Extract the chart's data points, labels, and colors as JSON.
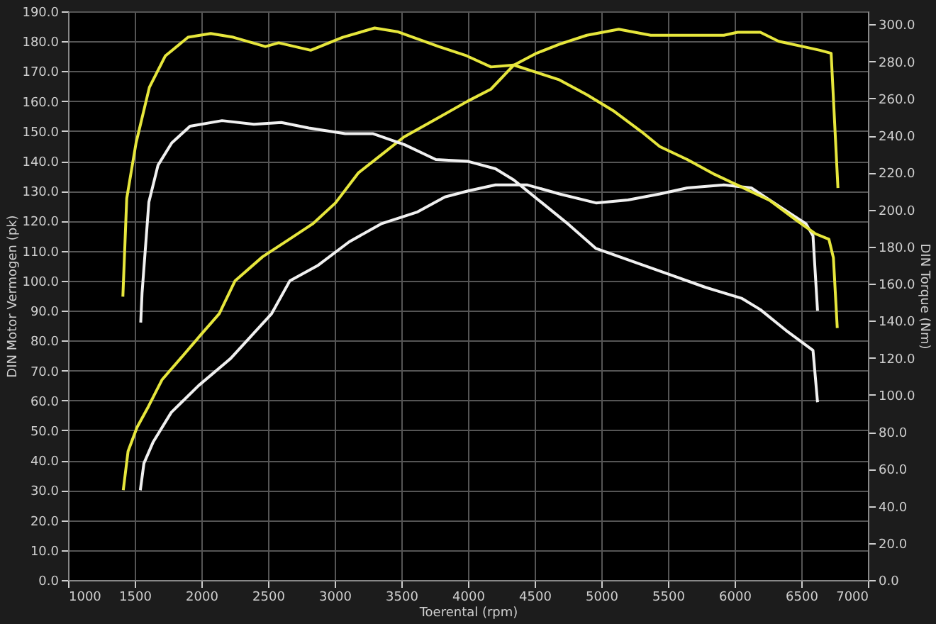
{
  "chart_data": {
    "type": "line",
    "xlabel": "Toerental (rpm)",
    "ylabel": "DIN Motor Vermogen (pk)",
    "y2label": "DIN Torque (Nm)",
    "xlim": [
      1000,
      7000
    ],
    "xticks": [
      1000,
      1500,
      2000,
      2500,
      3000,
      3500,
      4000,
      4500,
      5000,
      5500,
      6000,
      6500,
      7000
    ],
    "ylim": [
      0,
      190
    ],
    "yticks": [
      {
        "value": 0,
        "label": "0.0"
      },
      {
        "value": 10,
        "label": "10.0"
      },
      {
        "value": 20,
        "label": "20.0"
      },
      {
        "value": 30,
        "label": "30.0"
      },
      {
        "value": 40,
        "label": "40.0"
      },
      {
        "value": 50,
        "label": "50.0"
      },
      {
        "value": 60,
        "label": "60.0"
      },
      {
        "value": 70,
        "label": "70.0"
      },
      {
        "value": 80,
        "label": "80.0"
      },
      {
        "value": 90,
        "label": "90.0"
      },
      {
        "value": 100,
        "label": "100.0"
      },
      {
        "value": 110,
        "label": "110.0"
      },
      {
        "value": 120,
        "label": "120.0"
      },
      {
        "value": 130,
        "label": "130.0"
      },
      {
        "value": 140,
        "label": "140.0"
      },
      {
        "value": 150,
        "label": "150.0"
      },
      {
        "value": 160,
        "label": "160.0"
      },
      {
        "value": 170,
        "label": "170.0"
      },
      {
        "value": 180,
        "label": "180.0"
      },
      {
        "value": 190,
        "label": "190.0"
      }
    ],
    "y2lim": [
      0,
      307
    ],
    "y2ticks": [
      {
        "value": 0,
        "label": "0.0"
      },
      {
        "value": 20,
        "label": "20.0"
      },
      {
        "value": 40,
        "label": "40.0"
      },
      {
        "value": 60,
        "label": "60.0"
      },
      {
        "value": 80,
        "label": "80.0"
      },
      {
        "value": 100,
        "label": "100.0"
      },
      {
        "value": 120,
        "label": "120.0"
      },
      {
        "value": 140,
        "label": "140.0"
      },
      {
        "value": 160,
        "label": "160.0"
      },
      {
        "value": 180,
        "label": "180.0"
      },
      {
        "value": 200,
        "label": "200.0"
      },
      {
        "value": 220,
        "label": "220.0"
      },
      {
        "value": 240,
        "label": "240.0"
      },
      {
        "value": 260,
        "label": "260.0"
      },
      {
        "value": 280,
        "label": "280.0"
      },
      {
        "value": 300,
        "label": "300.0"
      }
    ],
    "grid": true,
    "marker": "none",
    "line_style": "solid",
    "series": [
      {
        "color": "#e6e63c",
        "x": [
          1414,
          1450,
          1517,
          1603,
          1706,
          1843,
          1997,
          2134,
          2253,
          2459,
          2664,
          2835,
          3006,
          3177,
          3348,
          3519,
          3759,
          3998,
          4172,
          4343,
          4514,
          4686,
          4891,
          5131,
          5371,
          5611,
          5919,
          6022,
          6193,
          6330,
          6536,
          6639,
          6724,
          6775
        ],
        "values": [
          30,
          43,
          51,
          58,
          67,
          74,
          82,
          89,
          100,
          108,
          114,
          119,
          126,
          136,
          142,
          148,
          154,
          160,
          164,
          172,
          176,
          179,
          182,
          184,
          182,
          182,
          182,
          183,
          183,
          180,
          178,
          177,
          176,
          131
        ]
      },
      {
        "color": "#e6e63c",
        "axis": "y2",
        "x": [
          1411,
          1440,
          1510,
          1610,
          1730,
          1900,
          2070,
          2240,
          2480,
          2580,
          2820,
          3060,
          3300,
          3470,
          3780,
          3990,
          4172,
          4343,
          4514,
          4686,
          4891,
          5097,
          5302,
          5439,
          5645,
          5850,
          6056,
          6262,
          6467,
          6604,
          6707,
          6741,
          6770
        ],
        "values": [
          153,
          206,
          236,
          266,
          283,
          293,
          295,
          293,
          288,
          290,
          286,
          293,
          298,
          296,
          288,
          283,
          277,
          278,
          274,
          270,
          262,
          253,
          242,
          234,
          227,
          219,
          212,
          205,
          194,
          187,
          184,
          174,
          136
        ]
      },
      {
        "color": "#f0f0f0",
        "x": [
          1542,
          1569,
          1637,
          1774,
          1980,
          2219,
          2527,
          2664,
          2870,
          3109,
          3348,
          3622,
          3827,
          4000,
          4206,
          4446,
          4686,
          4960,
          5200,
          5439,
          5645,
          5919,
          6125,
          6330,
          6536,
          6588,
          6622
        ],
        "values": [
          30,
          39,
          46,
          56,
          65,
          74,
          89,
          100,
          105,
          113,
          119,
          123,
          128,
          130,
          132,
          132,
          129,
          126,
          127,
          129,
          131,
          132,
          131,
          125,
          119,
          115,
          90
        ]
      },
      {
        "color": "#f0f0f0",
        "axis": "y2",
        "x": [
          1545,
          1555,
          1606,
          1675,
          1778,
          1915,
          2155,
          2394,
          2600,
          2805,
          3079,
          3285,
          3525,
          3759,
          4001,
          4206,
          4343,
          4549,
          4754,
          4960,
          5234,
          5508,
          5782,
          6056,
          6193,
          6399,
          6588,
          6622
        ],
        "values": [
          139,
          155,
          204,
          224,
          236,
          245,
          248,
          246,
          247,
          244,
          241,
          241,
          235,
          227,
          226,
          222,
          216,
          204,
          192,
          179,
          172,
          165,
          158,
          152,
          146,
          134,
          124,
          96
        ]
      }
    ]
  }
}
